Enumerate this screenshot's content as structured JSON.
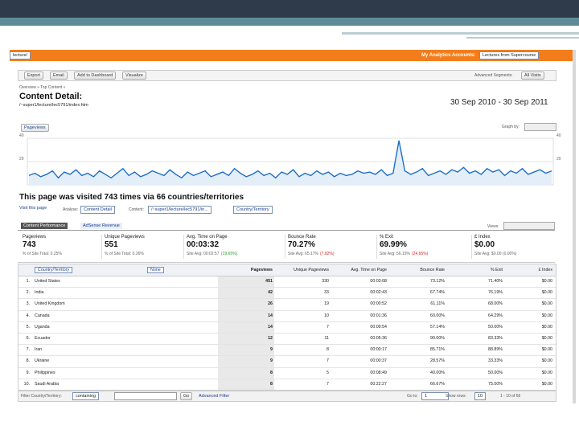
{
  "header": {
    "account_path": "lecture/",
    "accounts_label": "My Analytics Accounts:",
    "account": "Lectures from Supercourse"
  },
  "toolbar": {
    "buttons": [
      "Export",
      "Email",
      "Add to Dashboard",
      "Visualize"
    ],
    "segments_label": "Advanced Segments:",
    "segments": "All Visits"
  },
  "breadcrumb": "Overview » Top Content »",
  "page_title": "Content Detail:",
  "page_path": "/~super1/lecture/lec5791/index.htm",
  "date_range": "30 Sep 2010 - 30 Sep 2011",
  "chart": {
    "metric": "Pageviews",
    "graph_by": "Graph by:",
    "ylim": [
      0,
      40
    ],
    "yticks": [
      20,
      40
    ],
    "color": "#1f6fc5",
    "values": [
      8,
      10,
      7,
      9,
      12,
      6,
      11,
      9,
      13,
      8,
      10,
      7,
      12,
      9,
      6,
      10,
      14,
      8,
      11,
      7,
      9,
      12,
      10,
      8,
      13,
      9,
      6,
      11,
      8,
      10,
      12,
      7,
      9,
      11,
      8,
      14,
      10,
      7,
      9,
      12,
      8,
      10,
      6,
      11,
      9,
      13,
      7,
      10,
      8,
      12,
      9,
      11,
      7,
      10,
      8,
      9,
      12,
      10,
      11,
      9,
      13,
      8,
      10,
      38,
      12,
      9,
      11,
      14,
      8,
      10,
      12,
      9,
      13,
      11,
      15,
      10,
      12,
      9,
      14,
      11,
      13,
      8,
      12,
      10,
      14,
      9,
      11,
      13,
      10,
      12
    ]
  },
  "summary": {
    "headline": "This page was visited 743 times via 66 countries/territories",
    "visit_link": "Visit this page",
    "analyse_label": "Analyse:",
    "analyse": "Content Detail",
    "content_label": "Content:",
    "content": "/~super1/lecture/lec5791/in...",
    "dimension": "Country/Territory"
  },
  "tabs": [
    "Content Performance",
    "AdSense Revenue"
  ],
  "views_label": "Views:",
  "metrics": [
    {
      "name": "Pageviews",
      "value": "743",
      "note": "% of Site Total: 0.25%"
    },
    {
      "name": "Unique Pageviews",
      "value": "551",
      "note": "% of Site Total: 0.26%"
    },
    {
      "name": "Avg. Time on Page",
      "value": "00:03:32",
      "note": "Site Avg: 00:02:57",
      "delta": "(19.65%)"
    },
    {
      "name": "Bounce Rate",
      "value": "70.27%",
      "note": "Site Avg: 65.17%",
      "delta": "(7.82%)"
    },
    {
      "name": "% Exit",
      "value": "69.99%",
      "note": "Site Avg: 56.15%",
      "delta": "(24.65%)"
    },
    {
      "name": "£ Index",
      "value": "$0.00",
      "note": "Site Avg: $0.00 (0.00%)"
    }
  ],
  "table": {
    "columns": [
      "Country/Territory",
      "None",
      "Pageviews",
      "Unique Pageviews",
      "Avg. Time on Page",
      "Bounce Rate",
      "% Exit",
      "£ Index"
    ],
    "rows": [
      [
        "1.",
        "United States",
        "451",
        "330",
        "00:03:08",
        "73.12%",
        "71.40%",
        "$0.00"
      ],
      [
        "2.",
        "India",
        "42",
        "33",
        "00:02:43",
        "67.74%",
        "76.19%",
        "$0.00"
      ],
      [
        "3.",
        "United Kingdom",
        "26",
        "19",
        "00:00:52",
        "61.11%",
        "68.00%",
        "$0.00"
      ],
      [
        "4.",
        "Canada",
        "14",
        "10",
        "00:01:36",
        "60.00%",
        "64.29%",
        "$0.00"
      ],
      [
        "5.",
        "Uganda",
        "14",
        "7",
        "00:09:54",
        "57.14%",
        "50.00%",
        "$0.00"
      ],
      [
        "6.",
        "Ecuador",
        "12",
        "11",
        "00:05:36",
        "90.00%",
        "83.33%",
        "$0.00"
      ],
      [
        "7.",
        "Iran",
        "9",
        "8",
        "00:00:17",
        "85.71%",
        "88.89%",
        "$0.00"
      ],
      [
        "8.",
        "Ukraine",
        "9",
        "7",
        "00:00:37",
        "28.57%",
        "33.33%",
        "$0.00"
      ],
      [
        "9.",
        "Philippines",
        "8",
        "5",
        "00:08:49",
        "40.00%",
        "50.00%",
        "$0.00"
      ],
      [
        "10.",
        "Saudi Arabia",
        "8",
        "7",
        "00:22:27",
        "66.67%",
        "75.00%",
        "$0.00"
      ]
    ]
  },
  "footer": {
    "filter_label": "Filter Country/Territory:",
    "filter_mode": "containing",
    "go": "Go",
    "advanced": "Advanced Filter",
    "goto_label": "Go to:",
    "goto": "1",
    "show_rows_label": "Show rows:",
    "show_rows": "10",
    "range": "1 - 10 of 66"
  }
}
